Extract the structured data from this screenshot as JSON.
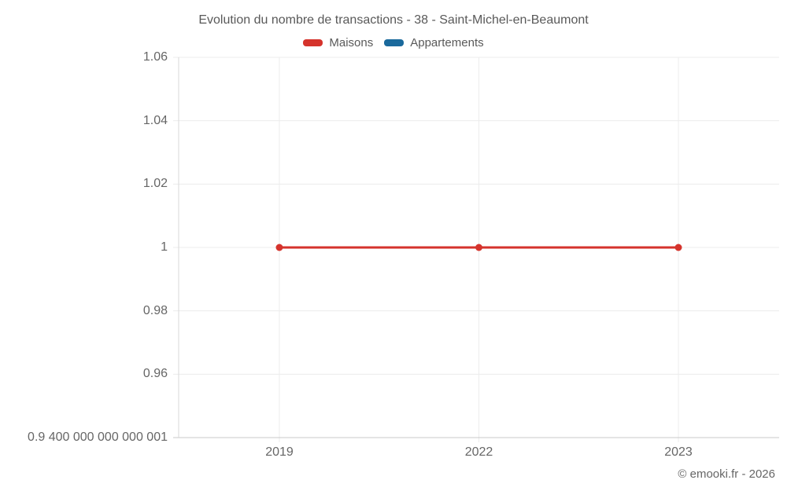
{
  "chart_data": {
    "type": "line",
    "title": "Evolution du nombre de transactions - 38 - Saint-Michel-en-Beaumont",
    "categories": [
      "2019",
      "2022",
      "2023"
    ],
    "series": [
      {
        "name": "Maisons",
        "color": "#d5332c",
        "values": [
          1,
          1,
          1
        ]
      },
      {
        "name": "Appartements",
        "color": "#1a699c",
        "values": [
          null,
          null,
          null
        ]
      }
    ],
    "ylim": [
      0.94,
      1.06
    ],
    "y_ticks": [
      {
        "label": "1.06",
        "value": 1.06
      },
      {
        "label": "1.04",
        "value": 1.04
      },
      {
        "label": "1.02",
        "value": 1.02
      },
      {
        "label": "1",
        "value": 1
      },
      {
        "label": "0.98",
        "value": 0.98
      },
      {
        "label": "0.96",
        "value": 0.96
      },
      {
        "label": "0.9 400 000 000 000 001",
        "value": 0.94
      }
    ],
    "grid": true,
    "legend_position": "top",
    "marker": "circle"
  },
  "footer": {
    "copyright": "© emooki.fr - 2026"
  }
}
